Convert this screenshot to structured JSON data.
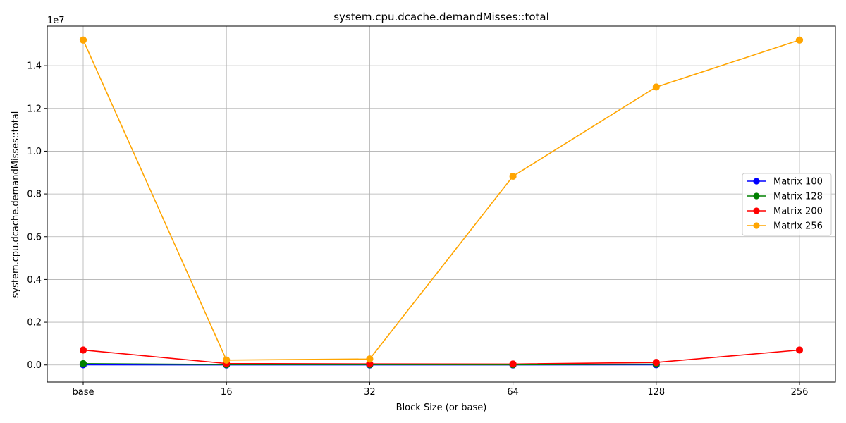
{
  "chart_data": {
    "type": "line",
    "title": "system.cpu.dcache.demandMisses::total",
    "xlabel": "Block Size (or base)",
    "ylabel": "system.cpu.dcache.demandMisses::total",
    "offset_label": "1e7",
    "categories": [
      "base",
      "16",
      "32",
      "64",
      "128",
      "256"
    ],
    "yticks": [
      0.0,
      0.2,
      0.4,
      0.6,
      0.8,
      1.0,
      1.2,
      1.4
    ],
    "ytick_labels": [
      "0.0",
      "0.2",
      "0.4",
      "0.6",
      "0.8",
      "1.0",
      "1.2",
      "1.4"
    ],
    "ylim": [
      -800000,
      15850000
    ],
    "grid": true,
    "legend_position": "center-right",
    "series": [
      {
        "name": "Matrix 100",
        "color": "#0000ff",
        "values": [
          10000,
          5000,
          5000,
          5000,
          10000,
          null
        ]
      },
      {
        "name": "Matrix 128",
        "color": "#008000",
        "values": [
          60000,
          20000,
          20000,
          15000,
          40000,
          null
        ]
      },
      {
        "name": "Matrix 200",
        "color": "#ff0000",
        "values": [
          700000,
          70000,
          50000,
          45000,
          120000,
          700000
        ]
      },
      {
        "name": "Matrix 256",
        "color": "#ffa500",
        "values": [
          15200000,
          230000,
          280000,
          8830000,
          13000000,
          15200000
        ]
      }
    ]
  }
}
